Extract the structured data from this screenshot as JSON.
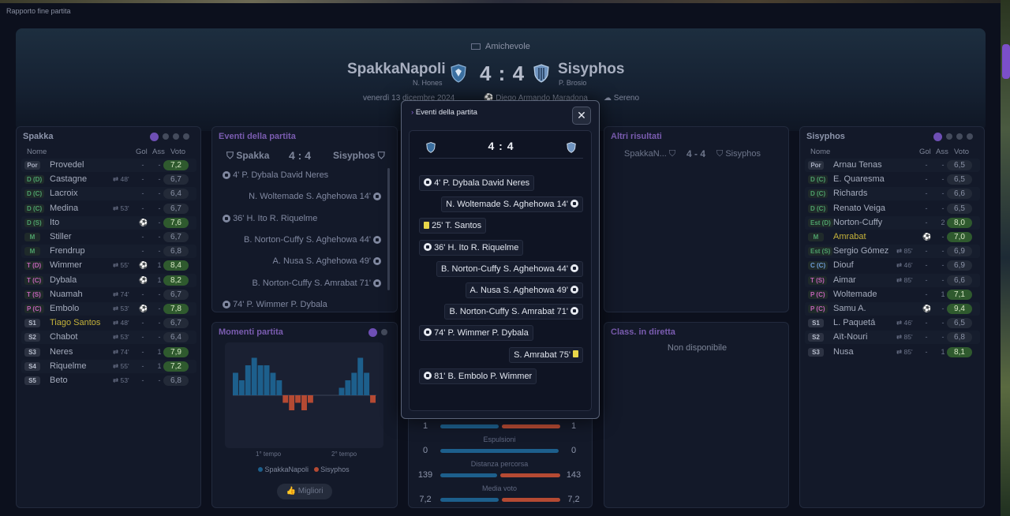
{
  "window": {
    "title": "Rapporto fine partita"
  },
  "match": {
    "type": "Amichevole",
    "home": {
      "name": "SpakkaNapoli",
      "coach": "N. Hones"
    },
    "away": {
      "name": "Sisyphos",
      "coach": "P. Brosio"
    },
    "score": "4 : 4",
    "date": "venerdì 13 dicembre 2024",
    "stadium": "Diego Armando Maradona",
    "weather": "Sereno"
  },
  "colors": {
    "home": "#1d5f8c",
    "away": "#b54a33",
    "accent": "#6e4fb5",
    "vote_green": "#2f5a2e"
  },
  "home_panel": {
    "title": "Spakka",
    "headers": {
      "name": "Nome",
      "goals": "Gol",
      "assists": "Ass",
      "vote": "Voto"
    },
    "players": [
      {
        "pos": "Por",
        "name": "Provedel",
        "sub": "",
        "g": "-",
        "a": "-",
        "v": "7,2",
        "hl": true
      },
      {
        "pos": "D (D)",
        "name": "Castagne",
        "sub": "48'",
        "g": "-",
        "a": "-",
        "v": "6,7"
      },
      {
        "pos": "D (C)",
        "name": "Lacroix",
        "sub": "",
        "g": "-",
        "a": "-",
        "v": "6,4"
      },
      {
        "pos": "D (C)",
        "name": "Medina",
        "sub": "53'",
        "g": "-",
        "a": "-",
        "v": "6,7"
      },
      {
        "pos": "D (S)",
        "name": "Ito",
        "sub": "",
        "g": "",
        "a": "-",
        "v": "7,6",
        "hl": true,
        "icon": true
      },
      {
        "pos": "M",
        "name": "Stiller",
        "sub": "",
        "g": "-",
        "a": "-",
        "v": "6,7"
      },
      {
        "pos": "M",
        "name": "Frendrup",
        "sub": "",
        "g": "-",
        "a": "-",
        "v": "6,8"
      },
      {
        "pos": "T (D)",
        "name": "Wimmer",
        "sub": "55'",
        "g": "",
        "a": "1",
        "v": "8,4",
        "hl": true,
        "icon": true
      },
      {
        "pos": "T (C)",
        "name": "Dybala",
        "sub": "",
        "g": "",
        "a": "1",
        "v": "8,2",
        "hl": true,
        "icon": true
      },
      {
        "pos": "T (S)",
        "name": "Nuamah",
        "sub": "74'",
        "g": "-",
        "a": "-",
        "v": "6,7"
      },
      {
        "pos": "P (C)",
        "name": "Embolo",
        "sub": "53'",
        "g": "",
        "a": "-",
        "v": "7,8",
        "hl": true,
        "icon": true
      },
      {
        "pos": "S1",
        "name": "Tiago Santos",
        "sub": "48'",
        "g": "-",
        "a": "-",
        "v": "6,7",
        "yellow": true
      },
      {
        "pos": "S2",
        "name": "Chabot",
        "sub": "53'",
        "g": "-",
        "a": "-",
        "v": "6,4"
      },
      {
        "pos": "S3",
        "name": "Neres",
        "sub": "74'",
        "g": "-",
        "a": "1",
        "v": "7,9",
        "hl": true
      },
      {
        "pos": "S4",
        "name": "Riquelme",
        "sub": "55'",
        "g": "-",
        "a": "1",
        "v": "7,2",
        "hl": true
      },
      {
        "pos": "S5",
        "name": "Beto",
        "sub": "53'",
        "g": "-",
        "a": "-",
        "v": "6,8"
      }
    ]
  },
  "away_panel": {
    "title": "Sisyphos",
    "headers": {
      "name": "Nome",
      "goals": "Gol",
      "assists": "Ass",
      "vote": "Voto"
    },
    "players": [
      {
        "pos": "Por",
        "name": "Arnau Tenas",
        "sub": "",
        "g": "-",
        "a": "-",
        "v": "6,5"
      },
      {
        "pos": "D (C)",
        "name": "E. Quaresma",
        "sub": "",
        "g": "-",
        "a": "-",
        "v": "6,5"
      },
      {
        "pos": "D (C)",
        "name": "Richards",
        "sub": "",
        "g": "-",
        "a": "-",
        "v": "6,6"
      },
      {
        "pos": "D (C)",
        "name": "Renato Veiga",
        "sub": "",
        "g": "-",
        "a": "-",
        "v": "6,5"
      },
      {
        "pos": "Est (D)",
        "name": "Norton-Cuffy",
        "sub": "",
        "g": "-",
        "a": "2",
        "v": "8,0",
        "hl": true
      },
      {
        "pos": "M",
        "name": "Amrabat",
        "sub": "",
        "g": "",
        "a": "-",
        "v": "7,0",
        "hl": true,
        "yellow": true,
        "icon": true
      },
      {
        "pos": "Est (S)",
        "name": "Sergio Gómez",
        "sub": "85'",
        "g": "-",
        "a": "-",
        "v": "6,9"
      },
      {
        "pos": "C (C)",
        "name": "Diouf",
        "sub": "46'",
        "g": "-",
        "a": "-",
        "v": "6,9"
      },
      {
        "pos": "T (S)",
        "name": "Aimar",
        "sub": "85'",
        "g": "-",
        "a": "-",
        "v": "6,6"
      },
      {
        "pos": "P (C)",
        "name": "Woltemade",
        "sub": "",
        "g": "-",
        "a": "1",
        "v": "7,1",
        "hl": true
      },
      {
        "pos": "P (C)",
        "name": "Samu A.",
        "sub": "",
        "g": "",
        "a": "-",
        "v": "9,4",
        "hl": true,
        "icon": true
      },
      {
        "pos": "S1",
        "name": "L. Paquetá",
        "sub": "46'",
        "g": "-",
        "a": "-",
        "v": "6,5"
      },
      {
        "pos": "S2",
        "name": "Aït-Nouri",
        "sub": "85'",
        "g": "-",
        "a": "-",
        "v": "6,8"
      },
      {
        "pos": "S3",
        "name": "Nusa",
        "sub": "85'",
        "g": "-",
        "a": "1",
        "v": "8,1",
        "hl": true
      }
    ]
  },
  "events_panel": {
    "title": "Eventi della partita",
    "home": "Spakka",
    "score": "4 : 4",
    "away": "Sisyphos",
    "items": [
      {
        "text": "4' P. Dybala David Neres",
        "side": "home"
      },
      {
        "text": "N. Woltemade S. Aghehowa 14'",
        "side": "away"
      },
      {
        "text": "36' H. Ito R. Riquelme",
        "side": "home"
      },
      {
        "text": "B. Norton-Cuffy S. Aghehowa 44'",
        "side": "away"
      },
      {
        "text": "A. Nusa S. Aghehowa 49'",
        "side": "away"
      },
      {
        "text": "B. Norton-Cuffy S. Amrabat 71'",
        "side": "away"
      },
      {
        "text": "74' P. Wimmer P. Dybala",
        "side": "home"
      }
    ]
  },
  "moments_panel": {
    "title": "Momenti partita",
    "first_half": "1° tempo",
    "second_half": "2° tempo",
    "legend_home": "SpakkaNapoli",
    "legend_away": "Sisyphos",
    "button": "Migliori"
  },
  "chart_data": {
    "type": "bar",
    "title": "Momenti partita",
    "series": [
      {
        "name": "SpakkaNapoli",
        "values": [
          3,
          2,
          4,
          5,
          4,
          4,
          3,
          2,
          0,
          0,
          0,
          0,
          0,
          0,
          0,
          0,
          0,
          1,
          2,
          3,
          5,
          3,
          0
        ]
      },
      {
        "name": "Sisyphos",
        "values": [
          0,
          0,
          0,
          0,
          0,
          0,
          0,
          0,
          -1,
          -2,
          -1,
          -2,
          -1,
          0,
          0,
          0,
          0,
          0,
          0,
          0,
          0,
          0,
          -1
        ]
      }
    ],
    "ylim": [
      -3,
      6
    ]
  },
  "other_results": {
    "title": "Altri risultati",
    "home": "SpakkaN...",
    "score": "4 - 4",
    "away": "Sisyphos"
  },
  "live_table": {
    "title": "Class. in diretta",
    "empty": "Non disponibile"
  },
  "stats": [
    {
      "label": "",
      "home": "1",
      "away": "1",
      "hf": 0.5
    },
    {
      "label": "Espulsioni",
      "home": "0",
      "away": "0",
      "hf": 1.0
    },
    {
      "label": "Distanza percorsa",
      "home": "139",
      "away": "143",
      "hf": 0.49
    },
    {
      "label": "Media voto",
      "home": "7,2",
      "away": "7,2",
      "hf": 0.5
    }
  ],
  "modal": {
    "title": "Eventi della partita",
    "score": "4 : 4",
    "events": [
      {
        "text": "4' P. Dybala David Neres",
        "side": "home",
        "kind": "goal"
      },
      {
        "text": "N. Woltemade S. Aghehowa 14'",
        "side": "away",
        "kind": "goal"
      },
      {
        "text": "25' T. Santos",
        "side": "home",
        "kind": "yellow"
      },
      {
        "text": "36' H. Ito R. Riquelme",
        "side": "home",
        "kind": "goal"
      },
      {
        "text": "B. Norton-Cuffy S. Aghehowa 44'",
        "side": "away",
        "kind": "goal"
      },
      {
        "text": "A. Nusa S. Aghehowa 49'",
        "side": "away",
        "kind": "goal"
      },
      {
        "text": "B. Norton-Cuffy S. Amrabat 71'",
        "side": "away",
        "kind": "goal"
      },
      {
        "text": "74' P. Wimmer P. Dybala",
        "side": "home",
        "kind": "goal"
      },
      {
        "text": "S. Amrabat 75'",
        "side": "away",
        "kind": "yellow"
      },
      {
        "text": "81' B. Embolo P. Wimmer",
        "side": "home",
        "kind": "goal"
      }
    ]
  }
}
